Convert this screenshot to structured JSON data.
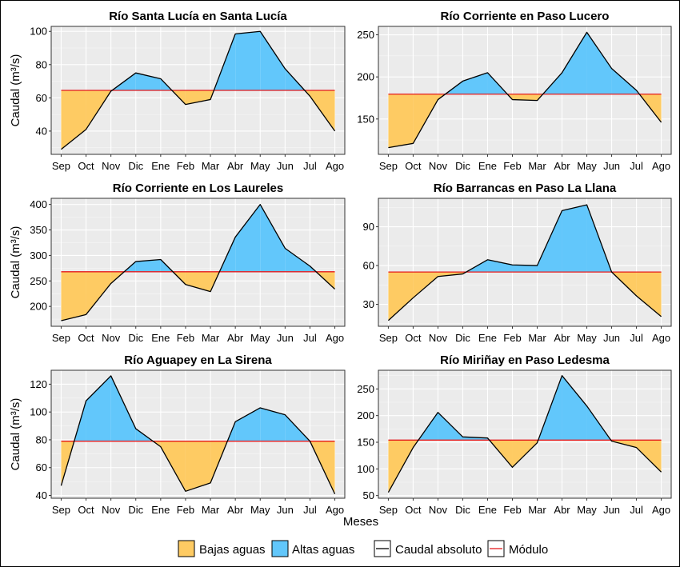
{
  "legend": {
    "low_label": "Bajas aguas",
    "high_label": "Altas aguas",
    "flow_label": "Caudal absoluto",
    "module_label": "Módulo",
    "colors": {
      "low": "#FECB63",
      "high": "#62C7FB",
      "flow": "#000000",
      "module": "#E41A1C",
      "panel": "#EBEBEB",
      "grid": "#FFFFFF"
    }
  },
  "xlabel_global": "Meses",
  "chart_data": [
    {
      "type": "area",
      "title": "Río Santa Lucía en Santa Lucía",
      "ylabel": "Caudal (m³/s)",
      "categories": [
        "Sep",
        "Oct",
        "Nov",
        "Dic",
        "Ene",
        "Feb",
        "Mar",
        "Abr",
        "May",
        "Jun",
        "Jul",
        "Ago"
      ],
      "values": [
        29,
        41,
        64,
        75,
        71.5,
        56,
        59,
        98.5,
        100,
        77.5,
        61,
        40
      ],
      "modulo": 64.5,
      "ylim": [
        26,
        103
      ],
      "yticks": [
        40,
        60,
        80,
        100
      ]
    },
    {
      "type": "area",
      "title": "Río Corriente en Paso Lucero",
      "ylabel": "",
      "categories": [
        "Sep",
        "Oct",
        "Nov",
        "Dic",
        "Ene",
        "Feb",
        "Mar",
        "Abr",
        "May",
        "Jun",
        "Jul",
        "Ago"
      ],
      "values": [
        116,
        121,
        173,
        195,
        205,
        173,
        172,
        205,
        253,
        210,
        184,
        146
      ],
      "modulo": 179.5,
      "ylim": [
        108,
        260
      ],
      "yticks": [
        150,
        200,
        250
      ]
    },
    {
      "type": "area",
      "title": "Río Corriente en Los Laureles",
      "ylabel": "Caudal (m³/s)",
      "categories": [
        "Sep",
        "Oct",
        "Nov",
        "Dic",
        "Ene",
        "Feb",
        "Mar",
        "Abr",
        "May",
        "Jun",
        "Jul",
        "Ago"
      ],
      "values": [
        172,
        184,
        245,
        288,
        292,
        243,
        229,
        336,
        400,
        314,
        279,
        234
      ],
      "modulo": 268,
      "ylim": [
        161,
        412
      ],
      "yticks": [
        200,
        250,
        300,
        350,
        400
      ]
    },
    {
      "type": "area",
      "title": "Río Barrancas en Paso La Llana",
      "ylabel": "",
      "categories": [
        "Sep",
        "Oct",
        "Nov",
        "Dic",
        "Ene",
        "Feb",
        "Mar",
        "Abr",
        "May",
        "Jun",
        "Jul",
        "Ago"
      ],
      "values": [
        17.5,
        35,
        51.5,
        53.5,
        64.5,
        60.5,
        60,
        102.5,
        107,
        55,
        36.5,
        20.5
      ],
      "modulo": 55,
      "ylim": [
        13,
        112
      ],
      "yticks": [
        30,
        60,
        90
      ]
    },
    {
      "type": "area",
      "title": "Río Aguapey en La Sirena",
      "ylabel": "Caudal (m³/s)",
      "categories": [
        "Sep",
        "Oct",
        "Nov",
        "Dic",
        "Ene",
        "Feb",
        "Mar",
        "Abr",
        "May",
        "Jun",
        "Jul",
        "Ago"
      ],
      "values": [
        47,
        108,
        126,
        88,
        75,
        43,
        49,
        93,
        103,
        98,
        79,
        41
      ],
      "modulo": 79,
      "ylim": [
        38,
        130
      ],
      "yticks": [
        40,
        60,
        80,
        100,
        120
      ]
    },
    {
      "type": "area",
      "title": "Río Miriñay en Paso Ledesma",
      "ylabel": "",
      "categories": [
        "Sep",
        "Oct",
        "Nov",
        "Dic",
        "Ene",
        "Feb",
        "Mar",
        "Abr",
        "May",
        "Jun",
        "Jul",
        "Ago"
      ],
      "values": [
        56,
        140,
        206,
        160,
        158,
        103,
        149,
        275,
        218,
        152,
        140,
        94
      ],
      "modulo": 154,
      "ylim": [
        45,
        285
      ],
      "yticks": [
        50,
        100,
        150,
        200,
        250
      ]
    }
  ]
}
